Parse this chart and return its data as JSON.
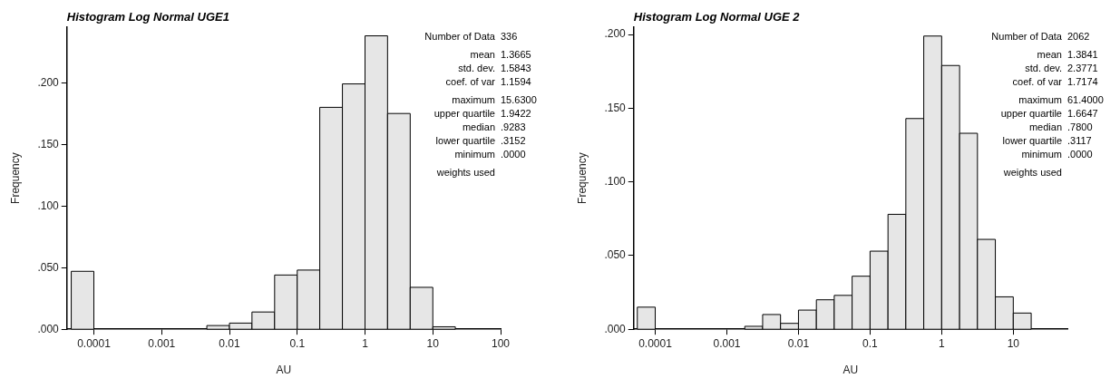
{
  "chart_data": [
    {
      "type": "histogram",
      "title": "Histogram Log Normal UGE1",
      "xlabel": "AU",
      "ylabel": "Frequency",
      "log": "x",
      "grid": false,
      "legend": false,
      "color": "#e6e6e6",
      "bins": [
        4.64e-05,
        0.0001,
        0.000215,
        0.000464,
        0.001,
        0.00215,
        0.00464,
        0.01,
        0.0215,
        0.0464,
        0.1,
        0.215,
        0.464,
        1,
        2.15,
        4.64,
        10,
        21.5
      ],
      "values": [
        0.047,
        0,
        0,
        0,
        0,
        0,
        0.003,
        0.005,
        0.014,
        0.044,
        0.048,
        0.18,
        0.199,
        0.238,
        0.175,
        0.034,
        0.002
      ],
      "xlim": [
        4e-05,
        100
      ],
      "xticks": [
        {
          "value": 0.0001,
          "label": "0.0001"
        },
        {
          "value": 0.001,
          "label": "0.001"
        },
        {
          "value": 0.01,
          "label": "0.01"
        },
        {
          "value": 0.1,
          "label": "0.1"
        },
        1,
        10,
        100
      ],
      "ylim": [
        0,
        0.245
      ],
      "yticks": [
        {
          "value": 0,
          "label": ".000"
        },
        {
          "value": 0.05,
          "label": ".050"
        },
        {
          "value": 0.1,
          "label": ".100"
        },
        {
          "value": 0.15,
          "label": ".150"
        },
        {
          "value": 0.2,
          "label": ".200"
        }
      ],
      "annotations": [
        "Number of Data",
        "336",
        "mean",
        "1.3665",
        "std. dev.",
        "1.5843",
        "coef. of var",
        "1.1594",
        "maximum",
        "15.6300",
        "upper quartile",
        "1.9422",
        "median",
        ".9283",
        "lower quartile",
        ".3152",
        "minimum",
        ".0000",
        "weights used"
      ]
    },
    {
      "type": "histogram",
      "title": "Histogram Log Normal UGE 2",
      "xlabel": "AU",
      "ylabel": "Frequency",
      "log": "x",
      "grid": false,
      "legend": false,
      "color": "#e6e6e6",
      "bins": [
        5.62e-05,
        0.0001,
        0.000178,
        0.000316,
        0.000562,
        0.001,
        0.00178,
        0.00316,
        0.00562,
        0.01,
        0.0178,
        0.0316,
        0.0562,
        0.1,
        0.178,
        0.316,
        0.562,
        1,
        1.78,
        3.16,
        5.62,
        10,
        17.8
      ],
      "values": [
        0.015,
        0,
        0,
        0,
        0,
        0,
        0.002,
        0.01,
        0.004,
        0.013,
        0.02,
        0.023,
        0.036,
        0.053,
        0.078,
        0.143,
        0.199,
        0.179,
        0.133,
        0.061,
        0.022,
        0.011
      ],
      "xlim": [
        5e-05,
        57
      ],
      "xticks": [
        {
          "value": 0.0001,
          "label": "0.0001"
        },
        {
          "value": 0.001,
          "label": "0.001"
        },
        {
          "value": 0.01,
          "label": "0.01"
        },
        {
          "value": 0.1,
          "label": "0.1"
        },
        1,
        10
      ],
      "ylim": [
        0,
        0.205
      ],
      "yticks": [
        {
          "value": 0,
          "label": ".000"
        },
        {
          "value": 0.05,
          "label": ".050"
        },
        {
          "value": 0.1,
          "label": ".100"
        },
        {
          "value": 0.15,
          "label": ".150"
        },
        {
          "value": 0.2,
          "label": ".200"
        }
      ],
      "annotations": [
        "Number of Data",
        "2062",
        "mean",
        "1.3841",
        "std. dev.",
        "2.3771",
        "coef. of var",
        "1.7174",
        "maximum",
        "61.4000",
        "upper quartile",
        "1.6647",
        "median",
        ".7800",
        "lower quartile",
        ".3117",
        "minimum",
        ".0000",
        "weights used"
      ]
    }
  ]
}
